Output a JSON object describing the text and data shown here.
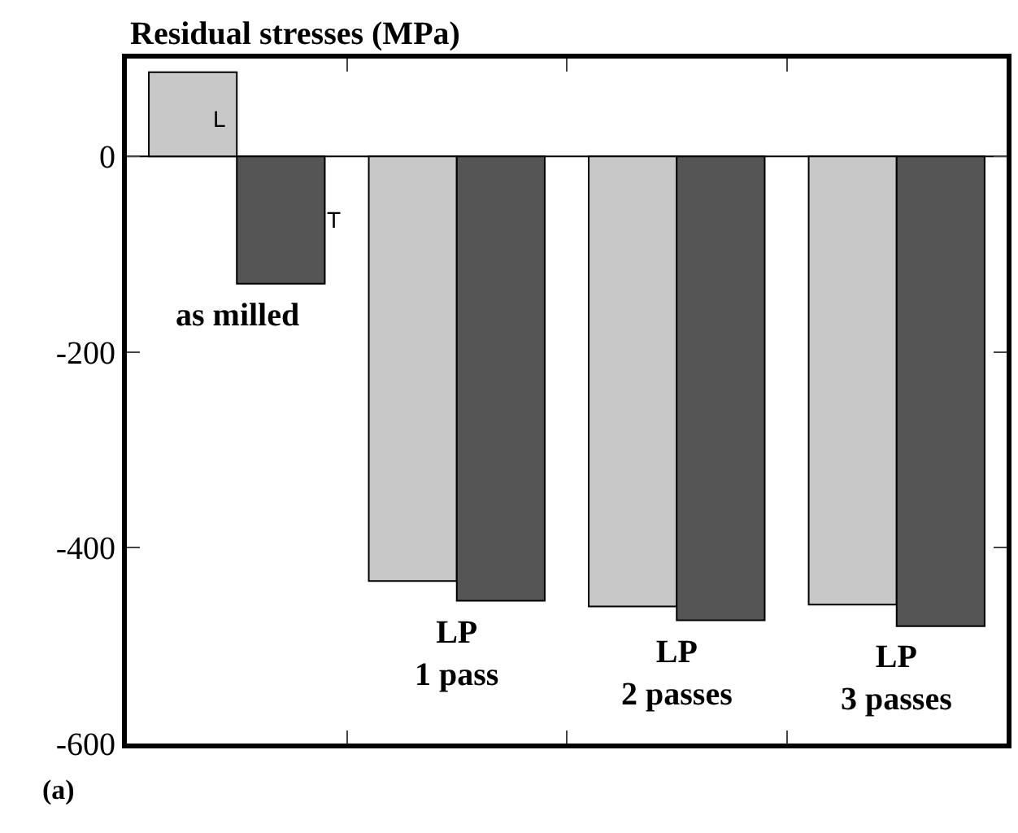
{
  "chart_data": {
    "type": "bar",
    "ylabel": "Residual stresses (MPa)",
    "categories": [
      "as milled",
      "LP\n1 pass",
      "LP\n2 passes",
      "LP\n3 passes"
    ],
    "series": [
      {
        "name": "L",
        "color": "#c8c8c8",
        "values": [
          86,
          -434,
          -460,
          -458
        ]
      },
      {
        "name": "T",
        "color": "#555555",
        "values": [
          -130,
          -454,
          -474,
          -480
        ]
      }
    ],
    "ref_lines": [
      {
        "axis": "y",
        "value": 0
      }
    ],
    "ylim": [
      -600,
      100
    ],
    "yticks": [
      -600,
      -400,
      -200,
      0
    ],
    "grid": false,
    "legend": false,
    "tick_labels": "y",
    "annotations": [
      "(a)"
    ]
  }
}
